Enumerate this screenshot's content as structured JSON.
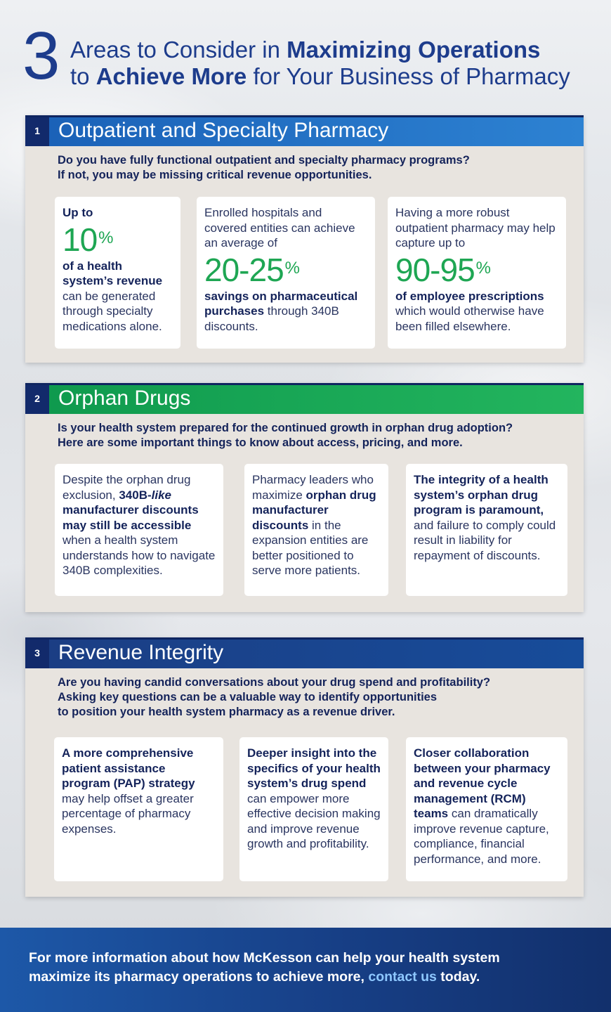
{
  "header": {
    "number": "3",
    "line1_pre": "Areas to Consider in ",
    "line1_bold": "Maximizing Operations",
    "line2_pre": "to ",
    "line2_bold": "Achieve More",
    "line2_post": " for Your Business of Pharmacy"
  },
  "section1": {
    "number": "1",
    "title": "Outpatient and Specialty Pharmacy",
    "intro1": "Do you have fully functional outpatient and specialty pharmacy programs?",
    "intro2": "If not, you may be missing critical revenue opportunities.",
    "card1": {
      "pre_bold": "Up to",
      "stat": "10",
      "stat_sup": "%",
      "bold": "of a health system’s revenue",
      "text": " can be generated through specialty medications alone."
    },
    "card2": {
      "pre": "Enrolled hospitals and covered entities can achieve an average of",
      "stat": "20-25",
      "stat_sup": "%",
      "bold": "savings on pharmaceutical purchases",
      "text": " through 340B discounts."
    },
    "card3": {
      "pre": "Having a more robust outpatient pharmacy may help capture up to",
      "stat": "90-95",
      "stat_sup": "%",
      "bold": "of employee prescriptions",
      "text": " which would otherwise have been filled elsewhere."
    }
  },
  "section2": {
    "number": "2",
    "title": "Orphan Drugs",
    "intro1": "Is your health system prepared for the continued growth in orphan drug adoption?",
    "intro2": "Here are some important things to know about access, pricing, and more.",
    "card1": {
      "t1": "Despite the orphan drug exclusion, ",
      "b1": "340B-",
      "bi": "like",
      "b2": " manufacturer discounts may still be accessible",
      "t2": " when a health system understands how to navigate 340B complexities."
    },
    "card2": {
      "t1": "Pharmacy leaders who maximize ",
      "b1": "orphan drug manufacturer discounts",
      "t2": " in the expansion entities are better positioned to serve more patients."
    },
    "card3": {
      "b1": "The integrity of a health system’s orphan drug program is paramount,",
      "t1": " and failure to comply could result in liability for repayment of discounts."
    }
  },
  "section3": {
    "number": "3",
    "title": "Revenue Integrity",
    "intro1": "Are you having candid conversations about your drug spend and profitability?",
    "intro2": "Asking key questions can be a valuable way to identify opportunities",
    "intro3": "to position your health system pharmacy as a revenue driver.",
    "card1": {
      "b1": "A more comprehensive patient assistance program (PAP) strategy",
      "t1": " may help offset a greater percentage of pharmacy expenses."
    },
    "card2": {
      "b1": "Deeper insight into the specifics of your health system’s drug spend",
      "t1": " can empower more effective decision making and improve revenue growth and profitability."
    },
    "card3": {
      "b1": "Closer collaboration between your pharmacy and revenue cycle management (RCM) teams",
      "t1": " can dramatically improve revenue capture, compliance, financial performance, and more."
    }
  },
  "footer": {
    "line1": "For more information about how McKesson can help your health system",
    "line2_pre": "maximize its pharmacy operations to achieve more, ",
    "link": "contact us",
    "line2_post": " today."
  }
}
